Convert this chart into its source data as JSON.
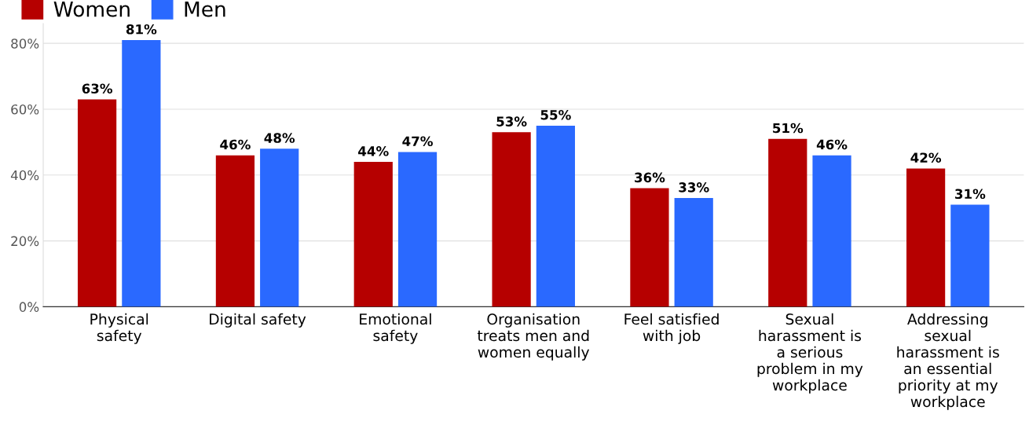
{
  "chart_data": {
    "type": "bar",
    "categories": [
      "Physical safety",
      "Digital safety",
      "Emotional safety",
      "Organisation treats men and women equally",
      "Feel satisfied with job",
      "Sexual harassment is a serious problem in my workplace",
      "Addressing sexual harassment is an essential priority at my workplace"
    ],
    "series": [
      {
        "name": "Women",
        "color": "#b60000",
        "values": [
          63,
          46,
          44,
          53,
          36,
          51,
          42
        ],
        "value_labels": [
          "63%",
          "46%",
          "44%",
          "53%",
          "36%",
          "51%",
          "42%"
        ]
      },
      {
        "name": "Men",
        "color": "#2a69ff",
        "values": [
          81,
          48,
          47,
          55,
          33,
          46,
          31
        ],
        "value_labels": [
          "81%",
          "48%",
          "47%",
          "55%",
          "33%",
          "46%",
          "31%"
        ]
      }
    ],
    "ylim": [
      0,
      86
    ],
    "yticks": [
      {
        "value": 0,
        "label": "0%"
      },
      {
        "value": 20,
        "label": "20%"
      },
      {
        "value": 40,
        "label": "40%"
      },
      {
        "value": 60,
        "label": "60%"
      },
      {
        "value": 80,
        "label": "80%"
      }
    ],
    "grid": "y",
    "legend": "top left"
  }
}
